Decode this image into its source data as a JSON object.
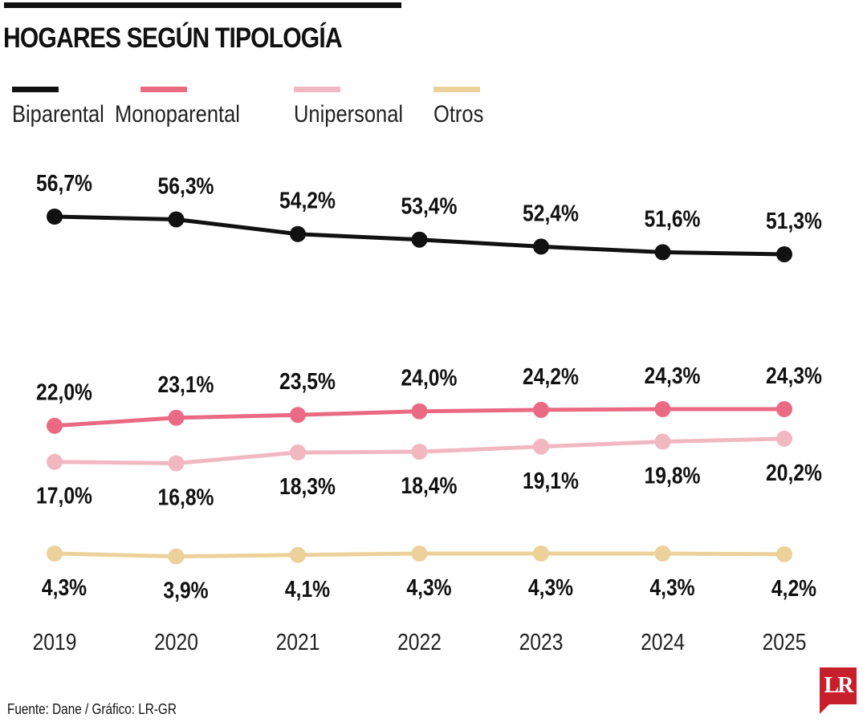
{
  "chart_data": {
    "type": "line",
    "title": "HOGARES SEGÚN TIPOLOGÍA",
    "categories": [
      "2019",
      "2020",
      "2021",
      "2022",
      "2023",
      "2024",
      "2025"
    ],
    "series": [
      {
        "name": "Biparental",
        "color": "#111111",
        "values": [
          56.7,
          56.3,
          54.2,
          53.4,
          52.4,
          51.6,
          51.3
        ],
        "labels": [
          "56,7%",
          "56,3%",
          "54,2%",
          "53,4%",
          "52,4%",
          "51,6%",
          "51,3%"
        ],
        "label_position": "above"
      },
      {
        "name": "Monoparental",
        "color": "#e96a82",
        "values": [
          22.0,
          23.1,
          23.5,
          24.0,
          24.2,
          24.3,
          24.3
        ],
        "labels": [
          "22,0%",
          "23,1%",
          "23,5%",
          "24,0%",
          "24,2%",
          "24,3%",
          "24,3%"
        ],
        "label_position": "above"
      },
      {
        "name": "Unipersonal",
        "color": "#f2b8c2",
        "values": [
          17.0,
          16.8,
          18.3,
          18.4,
          19.1,
          19.8,
          20.2
        ],
        "labels": [
          "17,0%",
          "16,8%",
          "18,3%",
          "18,4%",
          "19,1%",
          "19,8%",
          "20,2%"
        ],
        "label_position": "below"
      },
      {
        "name": "Otros",
        "color": "#ecd19a",
        "values": [
          4.3,
          3.9,
          4.1,
          4.3,
          4.3,
          4.3,
          4.2
        ],
        "labels": [
          "4,3%",
          "3,9%",
          "4,1%",
          "4,3%",
          "4,3%",
          "4,3%",
          "4,2%"
        ],
        "label_position": "below"
      }
    ],
    "grid": false,
    "legend": "top"
  },
  "source": "Fuente: Dane / Gráfico: LR-GR",
  "logo_text": "LR"
}
